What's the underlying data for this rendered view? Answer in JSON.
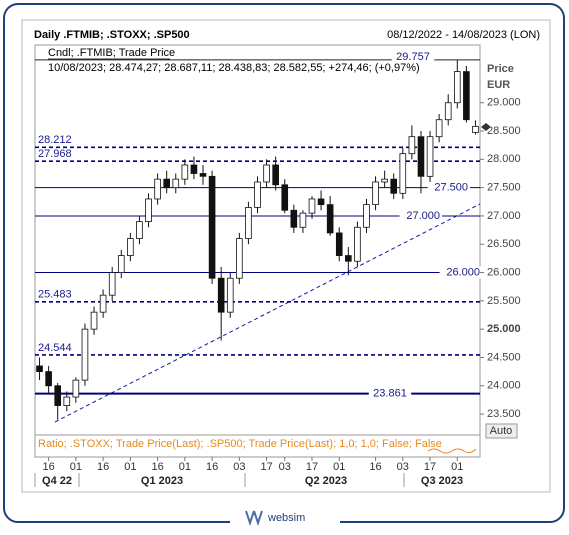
{
  "chart_data": {
    "type": "candlestick",
    "title": "Daily .FTMIB; .STOXX; .SP500",
    "date_range": "08/12/2022 - 14/08/2023 (LON)",
    "series_label": "Cndl; .FTMIB; Trade Price",
    "last_quote": "10/08/2023; 28.474,27; 28.687,11; 28.438,83; 28.582,55; +274,46; (+0,97%)",
    "y_axis_title": "Price",
    "y_axis_unit": "EUR",
    "lower_panel_label": "Ratio; .STOXX; Trade Price(Last); .SP500; Trade Price(Last);  1,0; 1,0; False; False",
    "auto_button": "Auto",
    "brand": "websim",
    "categories": [
      null,
      "16",
      null,
      null,
      "01",
      null,
      null,
      "16",
      null,
      null,
      "01",
      null,
      null,
      "16",
      null,
      null,
      "01",
      null,
      null,
      "16",
      null,
      null,
      "03",
      null,
      null,
      "17",
      null,
      "03",
      null,
      null,
      "17",
      null,
      null,
      "01",
      null,
      null,
      null,
      "16",
      null,
      null,
      "03",
      null,
      null,
      "17",
      null,
      null,
      "01",
      null,
      null
    ],
    "x_groups": [
      "Q4 22",
      "Q1 2023",
      "Q2 2023",
      "Q3 2023"
    ],
    "open": [
      24350,
      24250,
      24000,
      23650,
      23800,
      24100,
      25000,
      25300,
      25600,
      26000,
      26300,
      26600,
      26900,
      27300,
      27650,
      27500,
      27650,
      27900,
      27750,
      27700,
      25900,
      25300,
      25900,
      26600,
      27150,
      27600,
      27900,
      27550,
      27100,
      26800,
      27050,
      27300,
      27200,
      26700,
      26300,
      26200,
      26800,
      27200,
      27600,
      27650,
      27400,
      28100,
      28400,
      27700,
      28400,
      28700,
      29000,
      29550,
      28474.27
    ],
    "high": [
      24500,
      24350,
      24050,
      23900,
      24150,
      25100,
      25400,
      25700,
      26100,
      26400,
      26700,
      27000,
      27400,
      27750,
      27800,
      27750,
      28000,
      28050,
      27900,
      27800,
      26100,
      26000,
      26700,
      27250,
      27700,
      28000,
      28050,
      27650,
      27200,
      27100,
      27350,
      27450,
      27350,
      26800,
      26450,
      26900,
      27300,
      27700,
      27800,
      27750,
      28200,
      28600,
      28500,
      28500,
      28800,
      29150,
      29757,
      29650,
      28687.11
    ],
    "low": [
      24100,
      23850,
      23400,
      23550,
      23700,
      24000,
      24900,
      25200,
      25500,
      25900,
      26200,
      26500,
      26800,
      27200,
      27400,
      27400,
      27550,
      27650,
      27550,
      25800,
      24800,
      25200,
      25800,
      26500,
      27050,
      27500,
      27450,
      27050,
      26700,
      26700,
      26950,
      27100,
      26650,
      26200,
      25950,
      26100,
      26700,
      27100,
      27500,
      27300,
      27300,
      28000,
      27400,
      27600,
      28300,
      28600,
      28900,
      28650,
      28438.83
    ],
    "close": [
      24250,
      24000,
      23650,
      23800,
      24100,
      25000,
      25300,
      25600,
      26000,
      26300,
      26600,
      26900,
      27300,
      27650,
      27500,
      27650,
      27900,
      27750,
      27700,
      25900,
      25300,
      25900,
      26600,
      27150,
      27600,
      27900,
      27550,
      27100,
      26800,
      27050,
      27300,
      27200,
      26700,
      26300,
      26200,
      26800,
      27200,
      27600,
      27650,
      27400,
      28100,
      28400,
      27700,
      28400,
      28700,
      29000,
      29550,
      28700,
      28582.55
    ],
    "ylim": [
      23130,
      30020
    ],
    "yticks": [
      {
        "value": 23500,
        "label": "23.500"
      },
      {
        "value": 24000,
        "label": "24.000"
      },
      {
        "value": 24500,
        "label": "24.500"
      },
      {
        "value": 25000,
        "label": "25.000"
      },
      {
        "value": 25500,
        "label": "25.500"
      },
      {
        "value": 26000,
        "label": "26.000"
      },
      {
        "value": 26500,
        "label": "26.500"
      },
      {
        "value": 27000,
        "label": "27.000"
      },
      {
        "value": 27500,
        "label": "27.500"
      },
      {
        "value": 28000,
        "label": "28.000"
      },
      {
        "value": 28500,
        "label": "28.500"
      },
      {
        "value": 29000,
        "label": "29.000"
      }
    ],
    "levels": [
      {
        "value": 29757,
        "label": "29.757",
        "style": "solid",
        "label_side": "top"
      },
      {
        "value": 28212,
        "label": "28.212",
        "style": "dashed",
        "label_side": "left"
      },
      {
        "value": 27968,
        "label": "27.968",
        "style": "dashed",
        "label_side": "left"
      },
      {
        "value": 27500,
        "label": "27.500",
        "style": "solid",
        "label_side": "right"
      },
      {
        "value": 27000,
        "label": "27.000",
        "style": "solid",
        "label_side": "right"
      },
      {
        "value": 26000,
        "label": "26.000",
        "style": "solid",
        "label_side": "right"
      },
      {
        "value": 25483,
        "label": "25.483",
        "style": "dashed",
        "label_side": "left"
      },
      {
        "value": 24544,
        "label": "24.544",
        "style": "dashed",
        "label_side": "left"
      },
      {
        "value": 23861,
        "label": "23.861",
        "style": "thick",
        "label_side": "middle"
      }
    ]
  }
}
